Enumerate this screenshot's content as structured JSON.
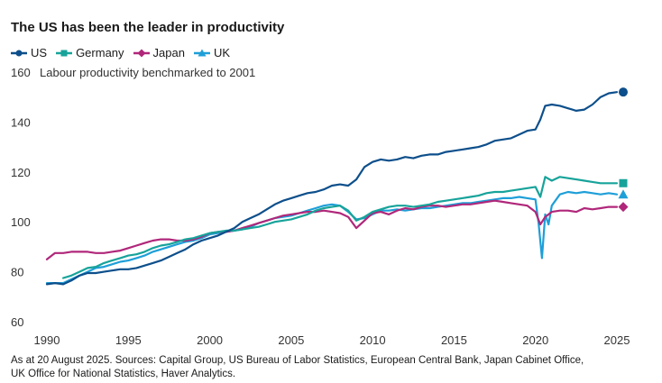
{
  "header": {
    "title": "The US has been the leader in productivity"
  },
  "footnote": {
    "line1": "As at 20 August 2025. Sources: Capital Group, US Bureau of Labor Statistics, European Central Bank, Japan Cabinet Office,",
    "line2": "UK Office for National Statistics, Haver Analytics."
  },
  "chart_data": {
    "type": "line",
    "title": "The US has been the leader in productivity",
    "ylabel": "Labour productivity benchmarked to 2001",
    "xlim": [
      1990,
      2025
    ],
    "ylim": [
      60,
      160
    ],
    "x_ticks": [
      "1990",
      "1995",
      "2000",
      "2005",
      "2010",
      "2015",
      "2020",
      "2025"
    ],
    "y_ticks": [
      "60",
      "80",
      "100",
      "120",
      "140",
      "160"
    ],
    "grid": false,
    "legend_position": "top-left",
    "series": [
      {
        "name": "US",
        "color": "#0d4f8b",
        "marker": "circle",
        "points": [
          [
            1990.0,
            75
          ],
          [
            1990.5,
            75.5
          ],
          [
            1991.0,
            75
          ],
          [
            1991.5,
            76.5
          ],
          [
            1992.0,
            78.5
          ],
          [
            1992.5,
            79.5
          ],
          [
            1993.0,
            79.5
          ],
          [
            1993.5,
            80
          ],
          [
            1994.0,
            80.5
          ],
          [
            1994.5,
            81
          ],
          [
            1995.0,
            81
          ],
          [
            1995.5,
            81.5
          ],
          [
            1996.0,
            82.5
          ],
          [
            1996.5,
            83.5
          ],
          [
            1997.0,
            84.5
          ],
          [
            1997.5,
            86
          ],
          [
            1998.0,
            87.5
          ],
          [
            1998.5,
            89
          ],
          [
            1999.0,
            91
          ],
          [
            1999.5,
            92.5
          ],
          [
            2000.0,
            93.5
          ],
          [
            2000.5,
            94.5
          ],
          [
            2001.0,
            96
          ],
          [
            2001.5,
            97.5
          ],
          [
            2002.0,
            100
          ],
          [
            2002.5,
            101.5
          ],
          [
            2003.0,
            103
          ],
          [
            2003.5,
            105
          ],
          [
            2004.0,
            107
          ],
          [
            2004.5,
            108.5
          ],
          [
            2005.0,
            109.5
          ],
          [
            2005.5,
            110.5
          ],
          [
            2006.0,
            111.5
          ],
          [
            2006.5,
            112
          ],
          [
            2007.0,
            113
          ],
          [
            2007.5,
            114.5
          ],
          [
            2008.0,
            115
          ],
          [
            2008.5,
            114.5
          ],
          [
            2009.0,
            117
          ],
          [
            2009.5,
            122
          ],
          [
            2010.0,
            124
          ],
          [
            2010.5,
            125
          ],
          [
            2011.0,
            124.5
          ],
          [
            2011.5,
            125
          ],
          [
            2012.0,
            126
          ],
          [
            2012.5,
            125.5
          ],
          [
            2013.0,
            126.5
          ],
          [
            2013.5,
            127
          ],
          [
            2014.0,
            127
          ],
          [
            2014.5,
            128
          ],
          [
            2015.0,
            128.5
          ],
          [
            2015.5,
            129
          ],
          [
            2016.0,
            129.5
          ],
          [
            2016.5,
            130
          ],
          [
            2017.0,
            131
          ],
          [
            2017.5,
            132.5
          ],
          [
            2018.0,
            133
          ],
          [
            2018.5,
            133.5
          ],
          [
            2019.0,
            135
          ],
          [
            2019.5,
            136.5
          ],
          [
            2020.0,
            137
          ],
          [
            2020.3,
            141
          ],
          [
            2020.6,
            146.5
          ],
          [
            2021.0,
            147
          ],
          [
            2021.5,
            146.5
          ],
          [
            2022.0,
            145.5
          ],
          [
            2022.5,
            144.5
          ],
          [
            2023.0,
            145
          ],
          [
            2023.5,
            147
          ],
          [
            2024.0,
            150
          ],
          [
            2024.5,
            151.5
          ],
          [
            2025.0,
            152
          ]
        ]
      },
      {
        "name": "Germany",
        "color": "#17a39a",
        "marker": "square",
        "points": [
          [
            1991.0,
            77.5
          ],
          [
            1991.5,
            78.5
          ],
          [
            1992.0,
            80
          ],
          [
            1992.5,
            81.5
          ],
          [
            1993.0,
            82
          ],
          [
            1993.5,
            83.5
          ],
          [
            1994.0,
            84.5
          ],
          [
            1994.5,
            85.5
          ],
          [
            1995.0,
            86.5
          ],
          [
            1995.5,
            87
          ],
          [
            1996.0,
            88
          ],
          [
            1996.5,
            89.5
          ],
          [
            1997.0,
            90.5
          ],
          [
            1997.5,
            91
          ],
          [
            1998.0,
            92
          ],
          [
            1998.5,
            93
          ],
          [
            1999.0,
            93.5
          ],
          [
            1999.5,
            94.5
          ],
          [
            2000.0,
            95.5
          ],
          [
            2000.5,
            96
          ],
          [
            2001.0,
            96.5
          ],
          [
            2001.5,
            96.5
          ],
          [
            2002.0,
            97
          ],
          [
            2002.5,
            97.5
          ],
          [
            2003.0,
            98
          ],
          [
            2003.5,
            99
          ],
          [
            2004.0,
            100
          ],
          [
            2004.5,
            100.5
          ],
          [
            2005.0,
            101
          ],
          [
            2005.5,
            102
          ],
          [
            2006.0,
            103
          ],
          [
            2006.5,
            104.5
          ],
          [
            2007.0,
            105.5
          ],
          [
            2007.5,
            106
          ],
          [
            2008.0,
            106.5
          ],
          [
            2008.5,
            104.5
          ],
          [
            2009.0,
            100.5
          ],
          [
            2009.5,
            102
          ],
          [
            2010.0,
            104
          ],
          [
            2010.5,
            105
          ],
          [
            2011.0,
            106
          ],
          [
            2011.5,
            106.5
          ],
          [
            2012.0,
            106.5
          ],
          [
            2012.5,
            106
          ],
          [
            2013.0,
            106.5
          ],
          [
            2013.5,
            107
          ],
          [
            2014.0,
            108
          ],
          [
            2014.5,
            108.5
          ],
          [
            2015.0,
            109
          ],
          [
            2015.5,
            109.5
          ],
          [
            2016.0,
            110
          ],
          [
            2016.5,
            110.5
          ],
          [
            2017.0,
            111.5
          ],
          [
            2017.5,
            112
          ],
          [
            2018.0,
            112
          ],
          [
            2018.5,
            112.5
          ],
          [
            2019.0,
            113
          ],
          [
            2019.5,
            113.5
          ],
          [
            2020.0,
            114
          ],
          [
            2020.3,
            110
          ],
          [
            2020.6,
            118
          ],
          [
            2021.0,
            116.5
          ],
          [
            2021.5,
            118
          ],
          [
            2022.0,
            117.5
          ],
          [
            2022.5,
            117
          ],
          [
            2023.0,
            116.5
          ],
          [
            2023.5,
            116
          ],
          [
            2024.0,
            115.5
          ],
          [
            2024.5,
            115.5
          ],
          [
            2025.0,
            115.5
          ]
        ]
      },
      {
        "name": "Japan",
        "color": "#b0277a",
        "marker": "diamond",
        "points": [
          [
            1990.0,
            85
          ],
          [
            1990.5,
            87.5
          ],
          [
            1991.0,
            87.5
          ],
          [
            1991.5,
            88
          ],
          [
            1992.0,
            88
          ],
          [
            1992.5,
            88
          ],
          [
            1993.0,
            87.5
          ],
          [
            1993.5,
            87.5
          ],
          [
            1994.0,
            88
          ],
          [
            1994.5,
            88.5
          ],
          [
            1995.0,
            89.5
          ],
          [
            1995.5,
            90.5
          ],
          [
            1996.0,
            91.5
          ],
          [
            1996.5,
            92.5
          ],
          [
            1997.0,
            93
          ],
          [
            1997.5,
            93
          ],
          [
            1998.0,
            92.5
          ],
          [
            1998.5,
            92.5
          ],
          [
            1999.0,
            93
          ],
          [
            1999.5,
            94
          ],
          [
            2000.0,
            95.5
          ],
          [
            2000.5,
            96
          ],
          [
            2001.0,
            96
          ],
          [
            2001.5,
            96.5
          ],
          [
            2002.0,
            97.5
          ],
          [
            2002.5,
            98.5
          ],
          [
            2003.0,
            99.5
          ],
          [
            2003.5,
            100.5
          ],
          [
            2004.0,
            101.5
          ],
          [
            2004.5,
            102.5
          ],
          [
            2005.0,
            103
          ],
          [
            2005.5,
            103.5
          ],
          [
            2006.0,
            104
          ],
          [
            2006.5,
            104
          ],
          [
            2007.0,
            104.5
          ],
          [
            2007.5,
            104
          ],
          [
            2008.0,
            103.5
          ],
          [
            2008.5,
            102
          ],
          [
            2009.0,
            97.5
          ],
          [
            2009.5,
            100.5
          ],
          [
            2010.0,
            103.5
          ],
          [
            2010.5,
            104
          ],
          [
            2011.0,
            103
          ],
          [
            2011.5,
            104.5
          ],
          [
            2012.0,
            105.5
          ],
          [
            2012.5,
            105
          ],
          [
            2013.0,
            106
          ],
          [
            2013.5,
            106.5
          ],
          [
            2014.0,
            106.5
          ],
          [
            2014.5,
            106
          ],
          [
            2015.0,
            106.5
          ],
          [
            2015.5,
            107
          ],
          [
            2016.0,
            107
          ],
          [
            2016.5,
            107.5
          ],
          [
            2017.0,
            108
          ],
          [
            2017.5,
            108.5
          ],
          [
            2018.0,
            108
          ],
          [
            2018.5,
            107.5
          ],
          [
            2019.0,
            107
          ],
          [
            2019.5,
            106.5
          ],
          [
            2020.0,
            104
          ],
          [
            2020.3,
            99
          ],
          [
            2020.6,
            102
          ],
          [
            2021.0,
            104
          ],
          [
            2021.5,
            104.5
          ],
          [
            2022.0,
            104.5
          ],
          [
            2022.5,
            104
          ],
          [
            2023.0,
            105.5
          ],
          [
            2023.5,
            105
          ],
          [
            2024.0,
            105.5
          ],
          [
            2024.5,
            106
          ],
          [
            2025.0,
            106
          ]
        ]
      },
      {
        "name": "UK",
        "color": "#1e9fd8",
        "marker": "triangle",
        "points": [
          [
            1990.0,
            75.5
          ],
          [
            1990.5,
            75.5
          ],
          [
            1991.0,
            75.5
          ],
          [
            1991.5,
            77
          ],
          [
            1992.0,
            78.5
          ],
          [
            1992.5,
            80
          ],
          [
            1993.0,
            81.5
          ],
          [
            1993.5,
            82
          ],
          [
            1994.0,
            83
          ],
          [
            1994.5,
            84
          ],
          [
            1995.0,
            84.5
          ],
          [
            1995.5,
            85.5
          ],
          [
            1996.0,
            86.5
          ],
          [
            1996.5,
            88
          ],
          [
            1997.0,
            89
          ],
          [
            1997.5,
            90
          ],
          [
            1998.0,
            91
          ],
          [
            1998.5,
            92
          ],
          [
            1999.0,
            92.5
          ],
          [
            1999.5,
            93.5
          ],
          [
            2000.0,
            95
          ],
          [
            2000.5,
            95.5
          ],
          [
            2001.0,
            96
          ],
          [
            2001.5,
            96.5
          ],
          [
            2002.0,
            97
          ],
          [
            2002.5,
            98
          ],
          [
            2003.0,
            99.5
          ],
          [
            2003.5,
            100.5
          ],
          [
            2004.0,
            101.5
          ],
          [
            2004.5,
            102
          ],
          [
            2005.0,
            102.5
          ],
          [
            2005.5,
            103.5
          ],
          [
            2006.0,
            104.5
          ],
          [
            2006.5,
            105.5
          ],
          [
            2007.0,
            106.5
          ],
          [
            2007.5,
            107
          ],
          [
            2008.0,
            106.5
          ],
          [
            2008.5,
            104
          ],
          [
            2009.0,
            101
          ],
          [
            2009.5,
            101.5
          ],
          [
            2010.0,
            103
          ],
          [
            2010.5,
            104.5
          ],
          [
            2011.0,
            104.5
          ],
          [
            2011.5,
            105
          ],
          [
            2012.0,
            104.5
          ],
          [
            2012.5,
            105
          ],
          [
            2013.0,
            105.5
          ],
          [
            2013.5,
            105.5
          ],
          [
            2014.0,
            106
          ],
          [
            2014.5,
            106.5
          ],
          [
            2015.0,
            107
          ],
          [
            2015.5,
            107.5
          ],
          [
            2016.0,
            107.5
          ],
          [
            2016.5,
            108
          ],
          [
            2017.0,
            108.5
          ],
          [
            2017.5,
            109
          ],
          [
            2018.0,
            109.5
          ],
          [
            2018.5,
            109.5
          ],
          [
            2019.0,
            110
          ],
          [
            2019.5,
            109.5
          ],
          [
            2020.0,
            109
          ],
          [
            2020.2,
            99
          ],
          [
            2020.4,
            85.5
          ],
          [
            2020.6,
            103
          ],
          [
            2020.8,
            99
          ],
          [
            2021.0,
            106.5
          ],
          [
            2021.5,
            111
          ],
          [
            2022.0,
            112
          ],
          [
            2022.5,
            111.5
          ],
          [
            2023.0,
            112
          ],
          [
            2023.5,
            111.5
          ],
          [
            2024.0,
            111
          ],
          [
            2024.5,
            111.5
          ],
          [
            2025.0,
            111
          ]
        ]
      }
    ]
  }
}
